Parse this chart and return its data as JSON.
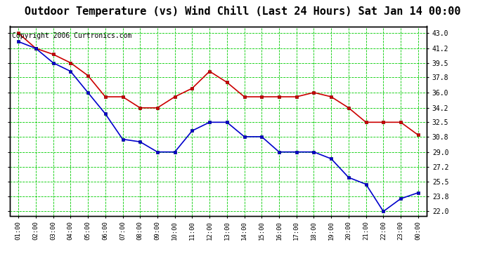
{
  "title": "Outdoor Temperature (vs) Wind Chill (Last 24 Hours) Sat Jan 14 00:00",
  "copyright": "Copyright 2006 Curtronics.com",
  "x_labels": [
    "01:00",
    "02:00",
    "03:00",
    "04:00",
    "05:00",
    "06:00",
    "07:00",
    "08:00",
    "09:00",
    "10:00",
    "11:00",
    "12:00",
    "13:00",
    "14:00",
    "15:00",
    "16:00",
    "17:00",
    "18:00",
    "19:00",
    "20:00",
    "21:00",
    "22:00",
    "23:00",
    "00:00"
  ],
  "temp_values": [
    43.0,
    41.2,
    40.5,
    39.5,
    38.0,
    35.5,
    35.5,
    34.2,
    34.2,
    35.5,
    36.5,
    38.5,
    37.2,
    35.5,
    35.5,
    35.5,
    35.5,
    36.0,
    35.5,
    34.2,
    32.5,
    32.5,
    32.5,
    31.0
  ],
  "windchill_values": [
    42.0,
    41.2,
    39.5,
    38.5,
    36.0,
    33.5,
    30.5,
    30.2,
    29.0,
    29.0,
    31.5,
    32.5,
    32.5,
    30.8,
    30.8,
    29.0,
    29.0,
    29.0,
    28.2,
    26.0,
    25.2,
    22.0,
    23.5,
    24.2
  ],
  "temp_color": "#cc0000",
  "windchill_color": "#0000cc",
  "bg_color": "#ffffff",
  "grid_color": "#00cc00",
  "ylim": [
    21.5,
    43.8
  ],
  "yticks": [
    22.0,
    23.8,
    25.5,
    27.2,
    29.0,
    30.8,
    32.5,
    34.2,
    36.0,
    37.8,
    39.5,
    41.2,
    43.0
  ],
  "title_fontsize": 11,
  "copyright_fontsize": 7,
  "marker": "s",
  "marker_size": 3,
  "line_width": 1.2
}
